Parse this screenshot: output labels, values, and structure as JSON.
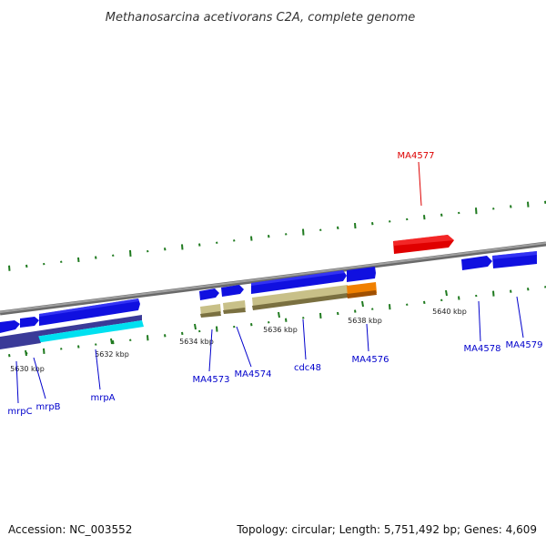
{
  "title": "Methanosarcina acetivorans C2A, complete genome",
  "footer": {
    "accession": "Accession: NC_003552",
    "summary": "Topology: circular; Length: 5,751,492 bp; Genes: 4,609"
  },
  "ticks": [
    "5630 kbp",
    "5632 kbp",
    "5634 kbp",
    "5636 kbp",
    "5638 kbp",
    "5640 kbp"
  ],
  "genes": [
    {
      "name": "mrpC",
      "color": "#0000cc"
    },
    {
      "name": "mrpB",
      "color": "#0000cc"
    },
    {
      "name": "mrpA",
      "color": "#0000cc"
    },
    {
      "name": "MA4573",
      "color": "#0000cc"
    },
    {
      "name": "MA4574",
      "color": "#0000cc"
    },
    {
      "name": "cdc48",
      "color": "#0000cc"
    },
    {
      "name": "MA4576",
      "color": "#0000cc"
    },
    {
      "name": "MA4577",
      "color": "#dd0000"
    },
    {
      "name": "MA4578",
      "color": "#0000cc"
    },
    {
      "name": "MA4579",
      "color": "#0000cc"
    }
  ],
  "colors": {
    "backbone": "#808080",
    "forward_gene": "#1010e0",
    "reverse_gene": "#e00000",
    "cds_forward": "#3a3a98",
    "cds_cyan": "#00e0f0",
    "cds_khaki": "#c8c088",
    "cds_orange": "#f08000",
    "gc_ticks": "#1f7a1f"
  }
}
